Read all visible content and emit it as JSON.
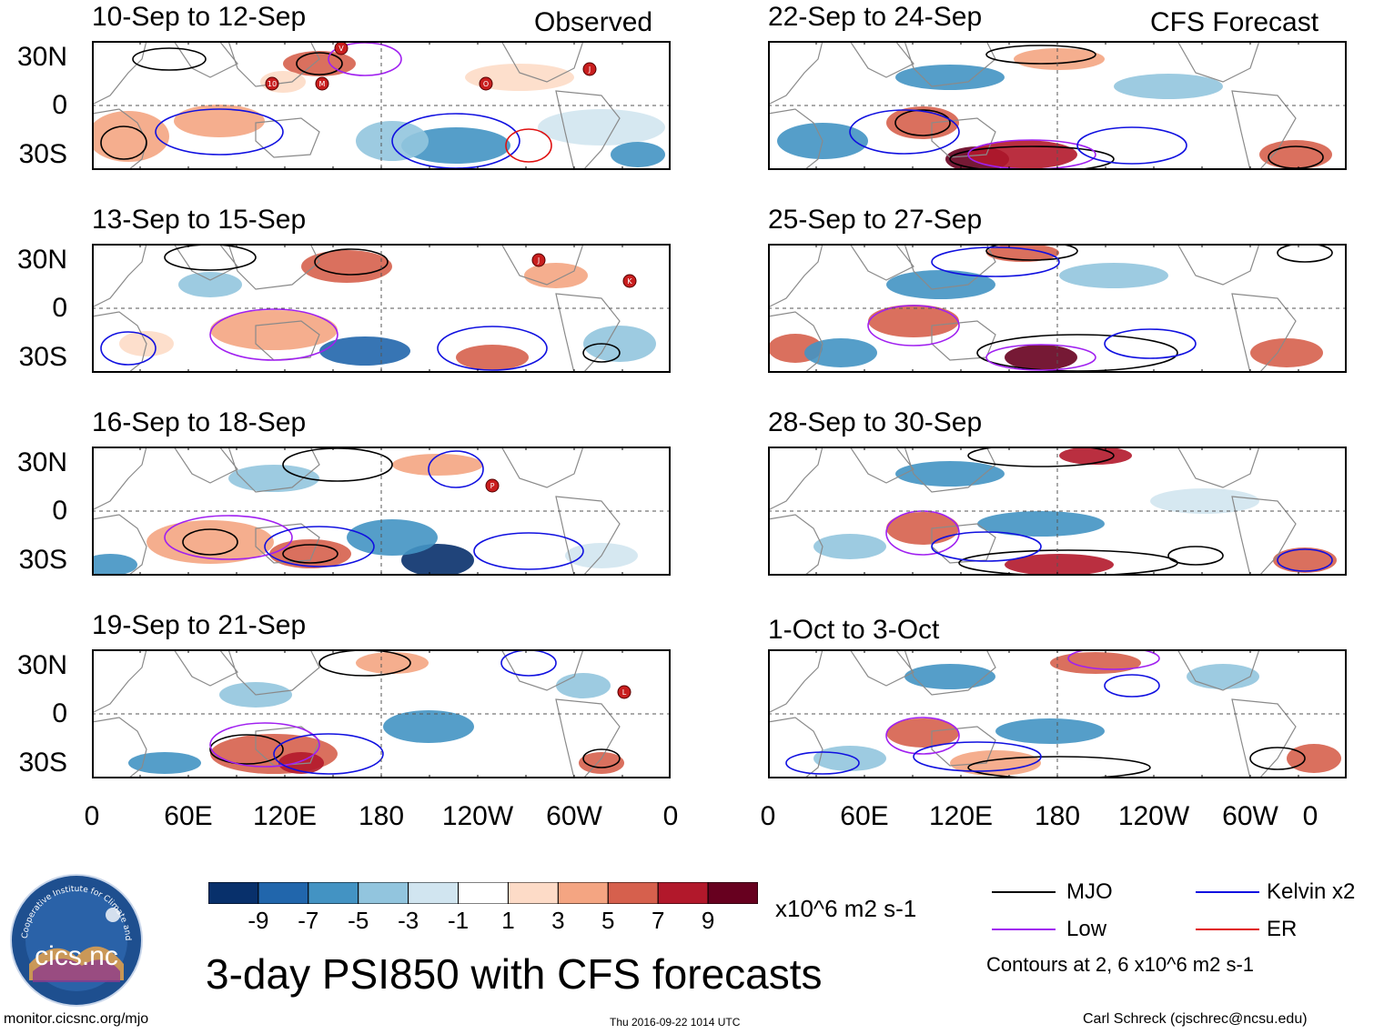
{
  "observed_label": "Observed",
  "forecast_label": "CFS Forecast",
  "lat_labels": [
    "30N",
    "0",
    "30S"
  ],
  "lon_labels": [
    "0",
    "60E",
    "120E",
    "180",
    "120W",
    "60W",
    "0"
  ],
  "panels": [
    {
      "title": "10-Sep to 12-Sep",
      "column": "observed",
      "storms": [
        "10",
        "M",
        "O",
        "J",
        "V"
      ]
    },
    {
      "title": "13-Sep to 15-Sep",
      "column": "observed",
      "storms": [
        "J",
        "K"
      ]
    },
    {
      "title": "16-Sep to 18-Sep",
      "column": "observed",
      "storms": [
        "P"
      ]
    },
    {
      "title": "19-Sep to 21-Sep",
      "column": "observed",
      "storms": [
        "L"
      ]
    },
    {
      "title": "22-Sep to 24-Sep",
      "column": "forecast",
      "storms": []
    },
    {
      "title": "25-Sep to 27-Sep",
      "column": "forecast",
      "storms": []
    },
    {
      "title": "28-Sep to 30-Sep",
      "column": "forecast",
      "storms": []
    },
    {
      "title": "1-Oct to 3-Oct",
      "column": "forecast",
      "storms": []
    }
  ],
  "colorbar": {
    "colors": [
      "#08306b",
      "#2166ac",
      "#4393c3",
      "#92c5de",
      "#d1e5f0",
      "#ffffff",
      "#fddbc7",
      "#f4a582",
      "#d6604d",
      "#b2182b",
      "#67001f"
    ],
    "labels": [
      "-9",
      "-7",
      "-5",
      "-3",
      "-1",
      "1",
      "3",
      "5",
      "7",
      "9"
    ],
    "units": "x10^6 m2 s-1"
  },
  "legend": {
    "mjo": {
      "label": "MJO",
      "color": "#000000"
    },
    "kelvin": {
      "label": "Kelvin x2",
      "color": "#1010e0"
    },
    "low": {
      "label": "Low",
      "color": "#a020f0"
    },
    "er": {
      "label": "ER",
      "color": "#e01010"
    },
    "note": "Contours at 2, 6 x10^6 m2 s-1"
  },
  "main_title": "3-day PSI850 with CFS forecasts",
  "logo_text": "cics.nc",
  "logo_ring_text": "Cooperative Institute for Climate and Satellites",
  "footer": {
    "url": "monitor.cicsnc.org/mjo",
    "timestamp": "Thu 2016-09-22 1014 UTC",
    "credit": "Carl Schreck (cjschrec@ncsu.edu)"
  }
}
